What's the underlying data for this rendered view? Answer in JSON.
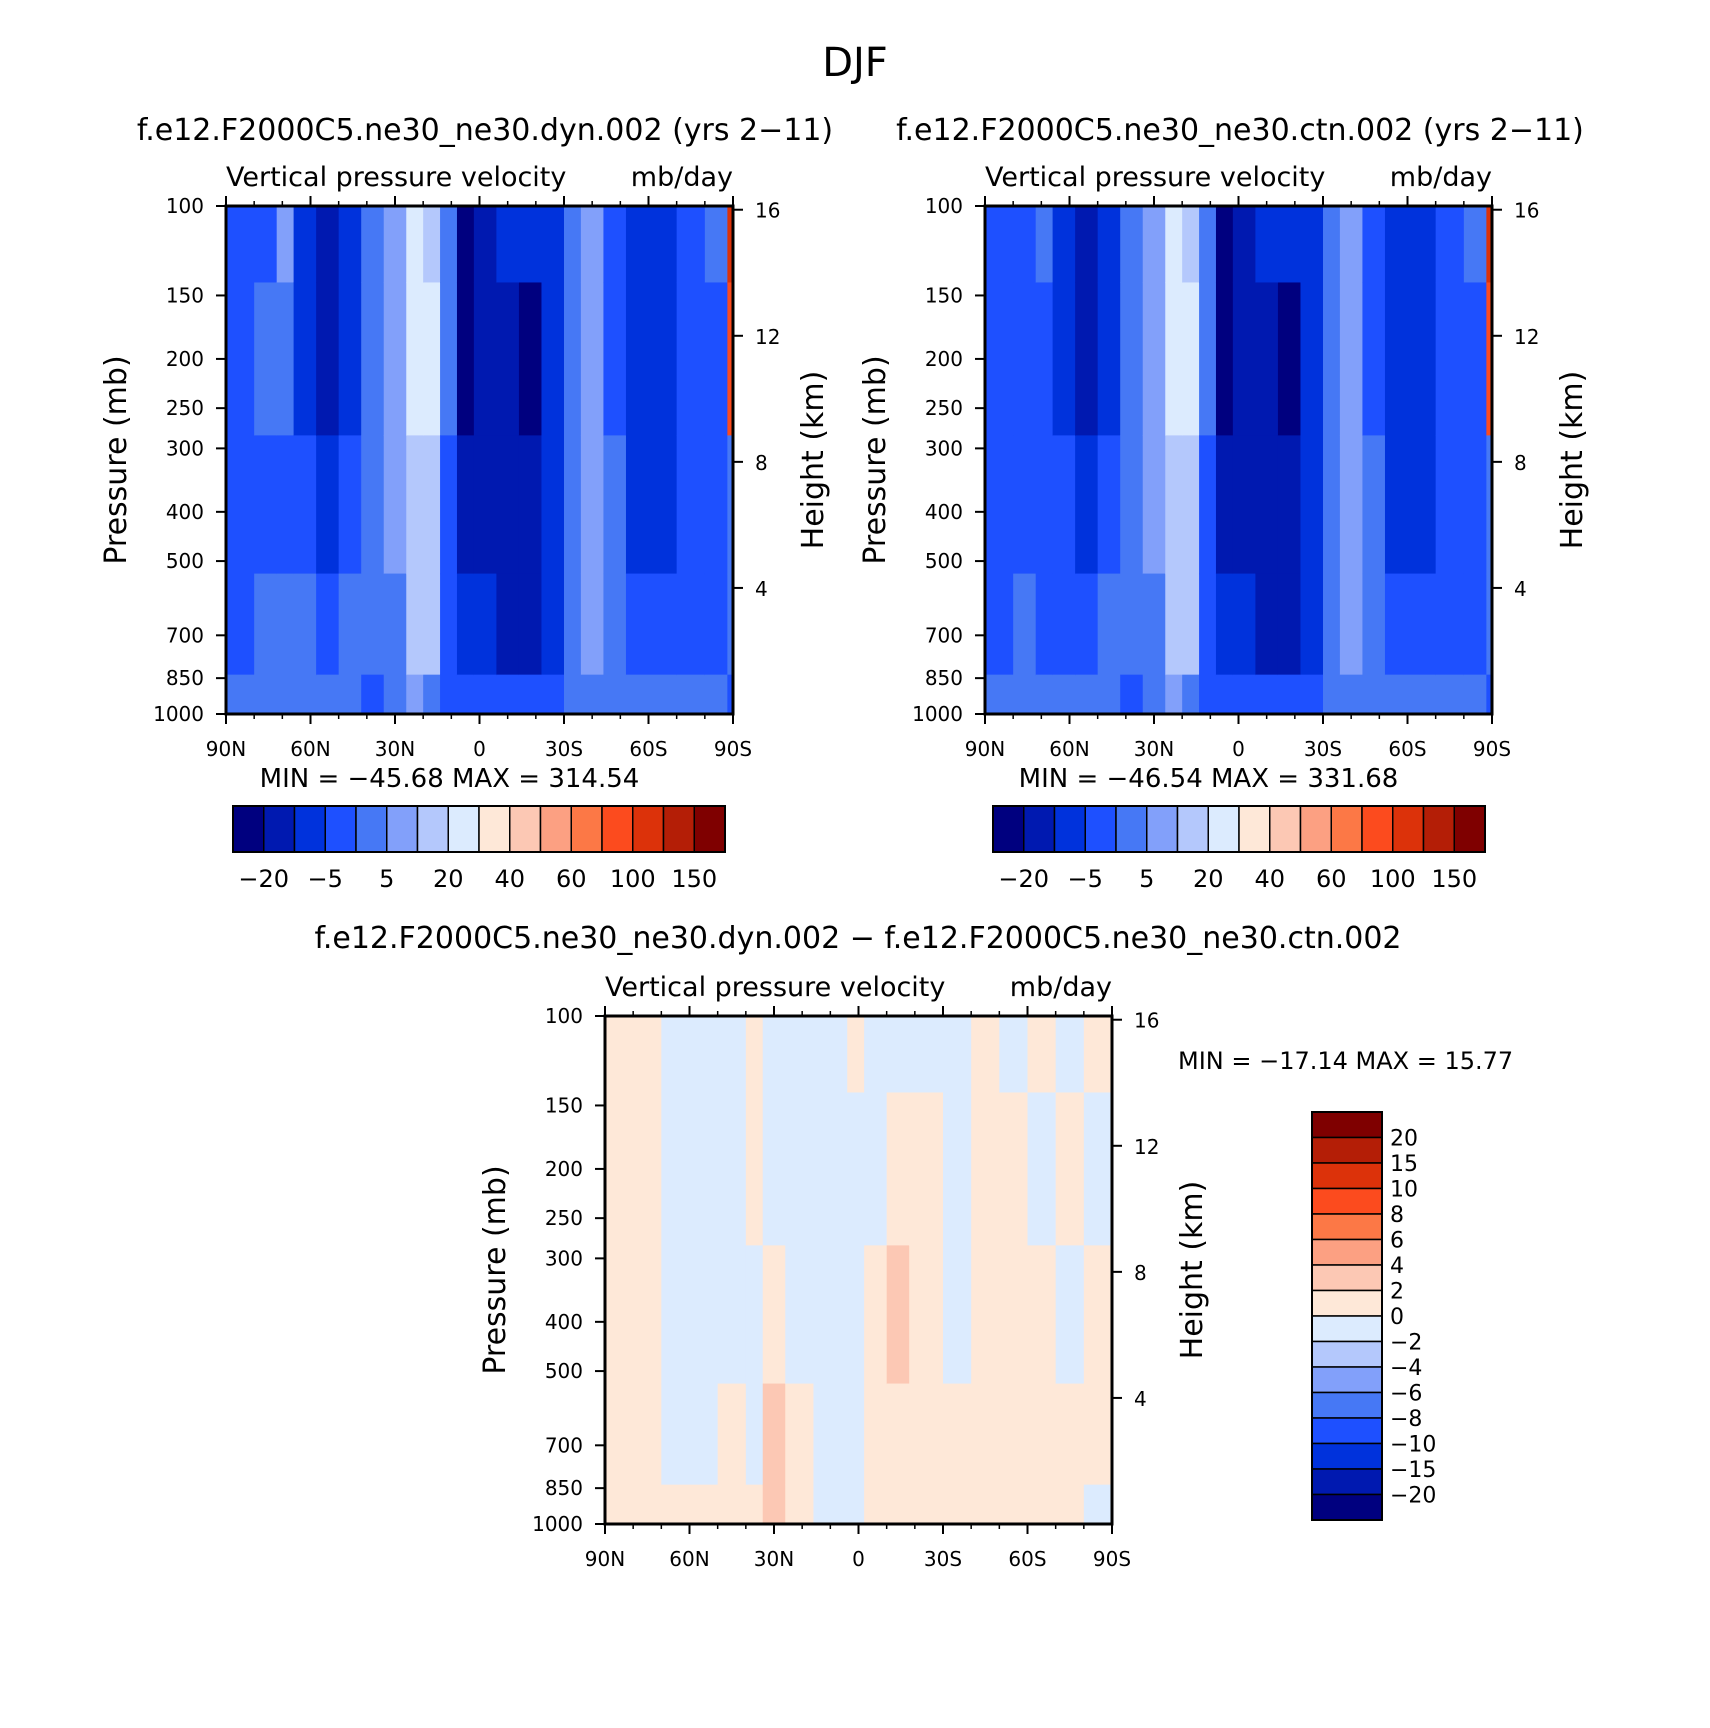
{
  "figure": {
    "title": "DJF"
  },
  "colors": {
    "abs_palette": [
      "#00007f",
      "#0019b0",
      "#0032dc",
      "#1e50ff",
      "#4678f5",
      "#82a0fa",
      "#b4c8fc",
      "#dcebfe",
      "#fee8d8",
      "#fcc8b4",
      "#fca082",
      "#fc7846",
      "#fc4b1e",
      "#dc320a",
      "#b41e06",
      "#7f0000"
    ],
    "diff_palette": [
      "#00007f",
      "#0019b0",
      "#0032dc",
      "#1e50ff",
      "#4678f5",
      "#82a0fa",
      "#b4c8fc",
      "#dcebfe",
      "#fee8d8",
      "#fcc8b4",
      "#fca082",
      "#fc7846",
      "#fc4b1e",
      "#dc320a",
      "#b41e06",
      "#7f0000"
    ]
  },
  "chart_data": [
    {
      "type": "heatmap",
      "title": "f.e12.F2000C5.ne30_ne30.dyn.002 (yrs 2-11)",
      "subtitle_left": "Vertical pressure velocity",
      "subtitle_right": "mb/day",
      "ylabel": "Pressure (mb)",
      "ylabel_right": "Height (km)",
      "x_ticks": [
        "90N",
        "60N",
        "30N",
        "0",
        "30S",
        "60S",
        "90S"
      ],
      "y_ticks": [
        100,
        150,
        200,
        250,
        300,
        400,
        500,
        700,
        850,
        1000
      ],
      "y_right_ticks": [
        16,
        12,
        8,
        4
      ],
      "ylim": [
        1000,
        100
      ],
      "stats": "MIN = -45.68   MAX = 314.54",
      "colorbar_labels": [
        "-20",
        "-5",
        "5",
        "20",
        "40",
        "60",
        "100",
        "150"
      ],
      "colorbar_orientation": "horizontal",
      "bands": [
        {
          "lat": 90,
          "profile": [
            3,
            3,
            3,
            3,
            4
          ]
        },
        {
          "lat": 80,
          "profile": [
            3,
            4,
            3,
            4,
            4
          ]
        },
        {
          "lat": 72,
          "profile": [
            5,
            4,
            3,
            4,
            4
          ]
        },
        {
          "lat": 66,
          "profile": [
            2,
            2,
            3,
            4,
            4
          ]
        },
        {
          "lat": 58,
          "profile": [
            1,
            1,
            2,
            3,
            4
          ]
        },
        {
          "lat": 50,
          "profile": [
            2,
            2,
            3,
            4,
            4
          ]
        },
        {
          "lat": 42,
          "profile": [
            4,
            4,
            4,
            4,
            3
          ]
        },
        {
          "lat": 34,
          "profile": [
            5,
            5,
            5,
            4,
            4
          ]
        },
        {
          "lat": 26,
          "profile": [
            7,
            7,
            6,
            6,
            5
          ]
        },
        {
          "lat": 20,
          "profile": [
            6,
            7,
            6,
            6,
            4
          ]
        },
        {
          "lat": 14,
          "profile": [
            4,
            4,
            3,
            3,
            3
          ]
        },
        {
          "lat": 8,
          "profile": [
            0,
            0,
            1,
            2,
            3
          ]
        },
        {
          "lat": 2,
          "profile": [
            1,
            1,
            1,
            2,
            3
          ]
        },
        {
          "lat": -6,
          "profile": [
            2,
            1,
            1,
            1,
            3
          ]
        },
        {
          "lat": -14,
          "profile": [
            2,
            0,
            1,
            1,
            3
          ]
        },
        {
          "lat": -22,
          "profile": [
            2,
            2,
            2,
            2,
            3
          ]
        },
        {
          "lat": -30,
          "profile": [
            4,
            4,
            4,
            4,
            4
          ]
        },
        {
          "lat": -36,
          "profile": [
            5,
            5,
            5,
            5,
            4
          ]
        },
        {
          "lat": -44,
          "profile": [
            3,
            3,
            4,
            4,
            4
          ]
        },
        {
          "lat": -52,
          "profile": [
            2,
            2,
            2,
            3,
            4
          ]
        },
        {
          "lat": -60,
          "profile": [
            2,
            2,
            2,
            3,
            4
          ]
        },
        {
          "lat": -70,
          "profile": [
            3,
            3,
            3,
            3,
            4
          ]
        },
        {
          "lat": -80,
          "profile": [
            4,
            3,
            3,
            3,
            4
          ]
        },
        {
          "lat": -88,
          "profile": [
            13,
            12,
            4,
            4,
            3
          ]
        }
      ]
    },
    {
      "type": "heatmap",
      "title": "f.e12.F2000C5.ne30_ne30.ctn.002 (yrs 2-11)",
      "subtitle_left": "Vertical pressure velocity",
      "subtitle_right": "mb/day",
      "ylabel": "Pressure (mb)",
      "ylabel_right": "Height (km)",
      "x_ticks": [
        "90N",
        "60N",
        "30N",
        "0",
        "30S",
        "60S",
        "90S"
      ],
      "y_ticks": [
        100,
        150,
        200,
        250,
        300,
        400,
        500,
        700,
        850,
        1000
      ],
      "y_right_ticks": [
        16,
        12,
        8,
        4
      ],
      "ylim": [
        1000,
        100
      ],
      "stats": "MIN = -46.54   MAX = 331.68",
      "colorbar_labels": [
        "-20",
        "-5",
        "5",
        "20",
        "40",
        "60",
        "100",
        "150"
      ],
      "colorbar_orientation": "horizontal",
      "bands": [
        {
          "lat": 90,
          "profile": [
            3,
            3,
            3,
            3,
            4
          ]
        },
        {
          "lat": 80,
          "profile": [
            3,
            3,
            3,
            4,
            4
          ]
        },
        {
          "lat": 72,
          "profile": [
            4,
            3,
            3,
            3,
            4
          ]
        },
        {
          "lat": 66,
          "profile": [
            2,
            2,
            3,
            3,
            4
          ]
        },
        {
          "lat": 58,
          "profile": [
            1,
            1,
            2,
            3,
            4
          ]
        },
        {
          "lat": 50,
          "profile": [
            2,
            2,
            3,
            4,
            4
          ]
        },
        {
          "lat": 42,
          "profile": [
            4,
            4,
            4,
            4,
            3
          ]
        },
        {
          "lat": 34,
          "profile": [
            5,
            5,
            5,
            4,
            4
          ]
        },
        {
          "lat": 26,
          "profile": [
            7,
            7,
            6,
            6,
            5
          ]
        },
        {
          "lat": 20,
          "profile": [
            6,
            7,
            6,
            6,
            4
          ]
        },
        {
          "lat": 14,
          "profile": [
            4,
            4,
            3,
            3,
            3
          ]
        },
        {
          "lat": 8,
          "profile": [
            0,
            0,
            1,
            2,
            3
          ]
        },
        {
          "lat": 2,
          "profile": [
            1,
            1,
            1,
            2,
            3
          ]
        },
        {
          "lat": -6,
          "profile": [
            2,
            1,
            1,
            1,
            3
          ]
        },
        {
          "lat": -14,
          "profile": [
            2,
            0,
            1,
            1,
            3
          ]
        },
        {
          "lat": -22,
          "profile": [
            2,
            2,
            2,
            2,
            3
          ]
        },
        {
          "lat": -30,
          "profile": [
            4,
            4,
            4,
            4,
            4
          ]
        },
        {
          "lat": -36,
          "profile": [
            5,
            5,
            5,
            5,
            4
          ]
        },
        {
          "lat": -44,
          "profile": [
            3,
            3,
            4,
            4,
            4
          ]
        },
        {
          "lat": -52,
          "profile": [
            2,
            2,
            2,
            3,
            4
          ]
        },
        {
          "lat": -60,
          "profile": [
            2,
            2,
            2,
            3,
            4
          ]
        },
        {
          "lat": -70,
          "profile": [
            3,
            3,
            3,
            3,
            4
          ]
        },
        {
          "lat": -80,
          "profile": [
            4,
            3,
            3,
            3,
            4
          ]
        },
        {
          "lat": -88,
          "profile": [
            13,
            12,
            4,
            4,
            3
          ]
        }
      ]
    },
    {
      "type": "heatmap",
      "title": "f.e12.F2000C5.ne30_ne30.dyn.002 - f.e12.F2000C5.ne30_ne30.ctn.002",
      "subtitle_left": "Vertical pressure velocity",
      "subtitle_right": "mb/day",
      "ylabel": "Pressure (mb)",
      "ylabel_right": "Height (km)",
      "x_ticks": [
        "90N",
        "60N",
        "30N",
        "0",
        "30S",
        "60S",
        "90S"
      ],
      "y_ticks": [
        100,
        150,
        200,
        250,
        300,
        400,
        500,
        700,
        850,
        1000
      ],
      "y_right_ticks": [
        16,
        12,
        8,
        4
      ],
      "ylim": [
        1000,
        100
      ],
      "stats": "MIN = -17.14   MAX =   15.77",
      "colorbar_labels": [
        "20",
        "15",
        "10",
        "8",
        "6",
        "4",
        "2",
        "0",
        "-2",
        "-4",
        "-6",
        "-8",
        "-10",
        "-15",
        "-20"
      ],
      "colorbar_orientation": "vertical",
      "bands": [
        {
          "lat": 90,
          "profile": [
            8,
            8,
            8,
            8,
            8
          ]
        },
        {
          "lat": 70,
          "profile": [
            7,
            7,
            7,
            7,
            8
          ]
        },
        {
          "lat": 50,
          "profile": [
            7,
            7,
            7,
            8,
            8
          ]
        },
        {
          "lat": 40,
          "profile": [
            8,
            8,
            7,
            7,
            8
          ]
        },
        {
          "lat": 34,
          "profile": [
            7,
            7,
            8,
            9,
            9
          ]
        },
        {
          "lat": 26,
          "profile": [
            7,
            7,
            7,
            8,
            8
          ]
        },
        {
          "lat": 16,
          "profile": [
            7,
            7,
            7,
            7,
            7
          ]
        },
        {
          "lat": 4,
          "profile": [
            8,
            7,
            7,
            7,
            7
          ]
        },
        {
          "lat": -2,
          "profile": [
            7,
            7,
            8,
            8,
            8
          ]
        },
        {
          "lat": -10,
          "profile": [
            7,
            8,
            9,
            8,
            8
          ]
        },
        {
          "lat": -18,
          "profile": [
            7,
            8,
            8,
            8,
            8
          ]
        },
        {
          "lat": -30,
          "profile": [
            7,
            7,
            7,
            8,
            8
          ]
        },
        {
          "lat": -40,
          "profile": [
            8,
            8,
            8,
            8,
            8
          ]
        },
        {
          "lat": -50,
          "profile": [
            7,
            8,
            8,
            8,
            8
          ]
        },
        {
          "lat": -60,
          "profile": [
            8,
            7,
            8,
            8,
            8
          ]
        },
        {
          "lat": -70,
          "profile": [
            7,
            8,
            7,
            8,
            8
          ]
        },
        {
          "lat": -80,
          "profile": [
            8,
            7,
            8,
            8,
            7
          ]
        }
      ]
    }
  ]
}
